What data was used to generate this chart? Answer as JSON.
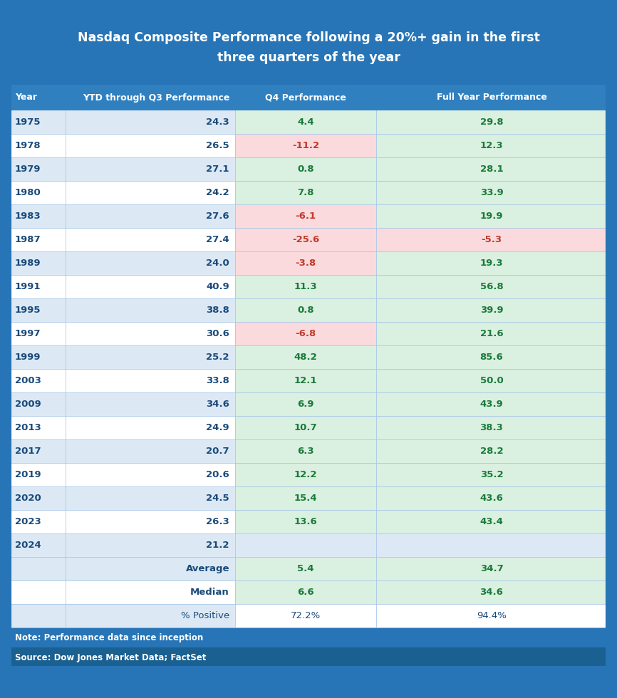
{
  "title_line1": "Nasdaq Composite Performance following a 20%+ gain in the first",
  "title_line2": "three quarters of the year",
  "headers": [
    "Year",
    "YTD through Q3 Performance",
    "Q4 Performance",
    "Full Year Performance"
  ],
  "rows": [
    [
      "1975",
      "24.3",
      "4.4",
      "29.8"
    ],
    [
      "1978",
      "26.5",
      "-11.2",
      "12.3"
    ],
    [
      "1979",
      "27.1",
      "0.8",
      "28.1"
    ],
    [
      "1980",
      "24.2",
      "7.8",
      "33.9"
    ],
    [
      "1983",
      "27.6",
      "-6.1",
      "19.9"
    ],
    [
      "1987",
      "27.4",
      "-25.6",
      "-5.3"
    ],
    [
      "1989",
      "24.0",
      "-3.8",
      "19.3"
    ],
    [
      "1991",
      "40.9",
      "11.3",
      "56.8"
    ],
    [
      "1995",
      "38.8",
      "0.8",
      "39.9"
    ],
    [
      "1997",
      "30.6",
      "-6.8",
      "21.6"
    ],
    [
      "1999",
      "25.2",
      "48.2",
      "85.6"
    ],
    [
      "2003",
      "33.8",
      "12.1",
      "50.0"
    ],
    [
      "2009",
      "34.6",
      "6.9",
      "43.9"
    ],
    [
      "2013",
      "24.9",
      "10.7",
      "38.3"
    ],
    [
      "2017",
      "20.7",
      "6.3",
      "28.2"
    ],
    [
      "2019",
      "20.6",
      "12.2",
      "35.2"
    ],
    [
      "2020",
      "24.5",
      "15.4",
      "43.6"
    ],
    [
      "2023",
      "26.3",
      "13.6",
      "43.4"
    ],
    [
      "2024",
      "21.2",
      "",
      ""
    ]
  ],
  "summary_rows": [
    [
      "",
      "Average",
      "5.4",
      "34.7"
    ],
    [
      "",
      "Median",
      "6.6",
      "34.6"
    ],
    [
      "",
      "% Positive",
      "72.2%",
      "94.4%"
    ]
  ],
  "note": "Note: Performance data since inception",
  "source": "Source: Dow Jones Market Data; FactSet",
  "title_bg": "#2775b6",
  "header_bg": "#3080c0",
  "col01_bg_even": "#dce9f5",
  "col01_bg_odd": "#ffffff",
  "q4_positive_bg": "#daf0e0",
  "q4_negative_bg": "#fadadd",
  "fy_positive_bg": "#daf0e0",
  "fy_negative_bg": "#fadadd",
  "col01_empty_bg": "#dce9f5",
  "positive_color": "#1a7a3a",
  "negative_color": "#c0392b",
  "year_color": "#1a4a7a",
  "ytd_color": "#1a4a7a",
  "header_text_color": "#ffffff",
  "summary_label_color": "#1a4a7a",
  "pct_positive_color": "#1a4a7a",
  "note_bg": "#2775b6",
  "source_bg": "#1a6090",
  "note_text_color": "#ffffff",
  "source_text_color": "#ffffff",
  "outer_bg": "#2775b6",
  "divider_color": "#a8c8e8",
  "summary_avg_med_q4_color": "#1a7a3a",
  "summary_avg_med_fy_color": "#1a7a3a"
}
